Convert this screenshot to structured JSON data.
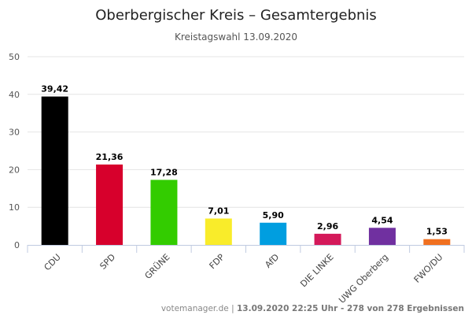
{
  "chart_data": {
    "type": "bar",
    "title": "Oberbergischer Kreis – Gesamtergebnis",
    "subtitle": "Kreistagswahl 13.09.2020",
    "categories": [
      "CDU",
      "SPD",
      "GRÜNE",
      "FDP",
      "AfD",
      "DIE LINKE",
      "UWG Oberberg",
      "FWO/DU"
    ],
    "values": [
      39.42,
      21.36,
      17.28,
      7.01,
      5.9,
      2.96,
      4.54,
      1.53
    ],
    "data_labels": [
      "39,42",
      "21,36",
      "17,28",
      "7,01",
      "5,90",
      "2,96",
      "4,54",
      "1,53"
    ],
    "colors": [
      "#000000",
      "#d7002c",
      "#33cc00",
      "#f9ec2a",
      "#009ee0",
      "#d4195a",
      "#7030a0",
      "#f07020"
    ],
    "yticks": [
      "0",
      "10",
      "20",
      "30",
      "40",
      "50"
    ],
    "ylim": [
      0,
      50
    ],
    "xlabel": "",
    "ylabel": "",
    "grid": true,
    "legend": "none"
  },
  "footer": {
    "source": "votemanager.de",
    "separator": " | ",
    "status": "13.09.2020 22:25 Uhr - 278 von 278 Ergebnissen"
  }
}
